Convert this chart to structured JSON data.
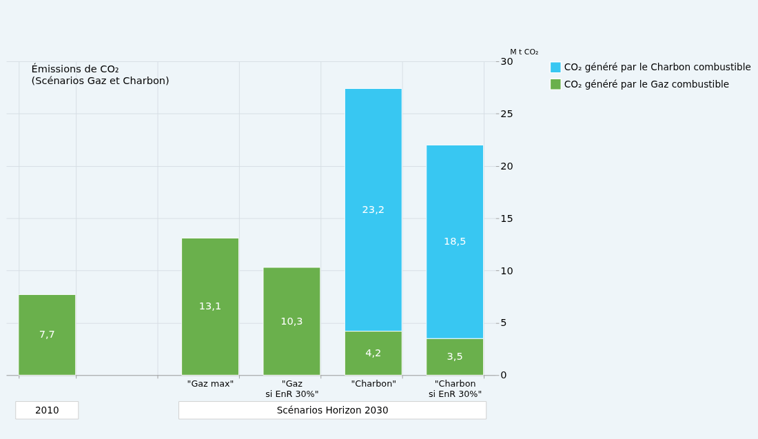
{
  "chart_data": {
    "type": "bar",
    "stacked": true,
    "title": "Émissions de CO₂",
    "subtitle": "(Scénarios Gaz et Charbon)",
    "ylabel": "M t CO₂",
    "categories": [
      null,
      null,
      "\"Gaz max\"",
      "\"Gaz\nsi EnR 30%\"",
      "\"Charbon\"",
      "\"Charbon\nsi EnR 30%\""
    ],
    "series": [
      {
        "name": "CO₂ généré par le Gaz combustible",
        "color": "#6ab04c",
        "values": [
          7.7,
          null,
          13.1,
          10.3,
          4.2,
          3.5
        ],
        "value_labels": [
          "7,7",
          null,
          "13,1",
          "10,3",
          "4,2",
          "3,5"
        ]
      },
      {
        "name": "CO₂ généré par le Charbon combustible",
        "color": "#38c7f2",
        "values": [
          null,
          null,
          null,
          null,
          23.2,
          18.5
        ],
        "value_labels": [
          null,
          null,
          null,
          null,
          "23,2",
          "18,5"
        ]
      }
    ],
    "ylim": [
      0,
      30
    ],
    "yticks": [
      0,
      5,
      10,
      15,
      20,
      25,
      30
    ],
    "grid": true,
    "legend": "right",
    "annotations": [
      "2010",
      "Scénarios Horizon 2030"
    ]
  }
}
